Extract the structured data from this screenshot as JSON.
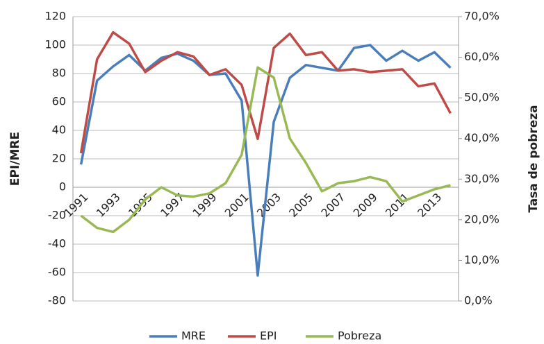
{
  "chart_data": {
    "type": "line",
    "categories": [
      "1991",
      null,
      "1993",
      null,
      "1995",
      null,
      "1997",
      null,
      "1999",
      null,
      "2001",
      null,
      "2003",
      null,
      "2005",
      null,
      "2007",
      null,
      "2009",
      null,
      "2011",
      null,
      "2013",
      null
    ],
    "series": [
      {
        "name": "MRE",
        "color": "#4a7ebb",
        "values": [
          16,
          75,
          85,
          93,
          82,
          91,
          94,
          89,
          79,
          80,
          61,
          -62,
          46,
          77,
          86,
          84,
          82,
          98,
          100,
          89,
          96,
          89,
          95,
          84
        ]
      },
      {
        "name": "EPI",
        "color": "#be4b48",
        "values": [
          24,
          90,
          109,
          101,
          81,
          89,
          95,
          92,
          79,
          83,
          72,
          34,
          98,
          108,
          93,
          95,
          82,
          83,
          81,
          82,
          83,
          71,
          73,
          52
        ]
      },
      {
        "name": "Pobreza",
        "color": "#98b954",
        "axis": "y2",
        "values": [
          21,
          18,
          17,
          20,
          25,
          28,
          26,
          25.7,
          26.5,
          29,
          36,
          57.5,
          55,
          40,
          34,
          27,
          29,
          29.5,
          30.5,
          29.5,
          24.5,
          26,
          27.5,
          28.5
        ]
      }
    ],
    "ylabel": "EPI/MRE",
    "y2label": "Tasa de pobreza",
    "ylim": [
      -80,
      120
    ],
    "yticks": [
      -80,
      -60,
      -40,
      -20,
      0,
      20,
      40,
      60,
      80,
      100,
      120
    ],
    "y2lim": [
      0,
      70
    ],
    "y2ticks": [
      {
        "value": 0,
        "label": "0,0%"
      },
      {
        "value": 10,
        "label": "10,0%"
      },
      {
        "value": 20,
        "label": "20,0%"
      },
      {
        "value": 30,
        "label": "30,0%"
      },
      {
        "value": 40,
        "label": "40,0%"
      },
      {
        "value": 50,
        "label": "50,0%"
      },
      {
        "value": 60,
        "label": "60,0%"
      },
      {
        "value": 70,
        "label": "70,0%"
      }
    ],
    "grid": true
  }
}
